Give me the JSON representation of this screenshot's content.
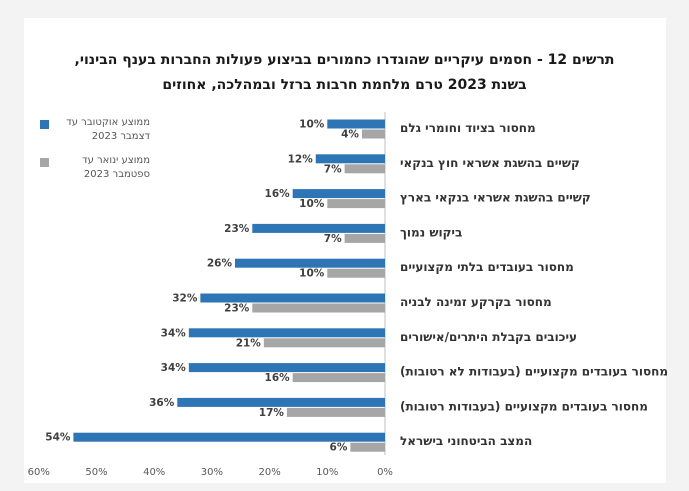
{
  "title_lines": [
    "תרשים 12 - חסמים עיקריים שהוגדרו כחמורים בביצוע פעולות החברות בענף הבינוי,",
    "בשנת 2023 טרם מלחמת חרבות ברזל ובמהלכה, אחוזים"
  ],
  "legend": [
    {
      "text": "ממוצע אוקטובר עד דצמבר 2023",
      "color": "#2e75b6"
    },
    {
      "text": "ממוצע ינואר עד ספטמבר 2023",
      "color": "#a6a6a6"
    }
  ],
  "chart_data": {
    "type": "bar",
    "orientation": "horizontal",
    "title": "תרשים 12 - חסמים עיקריים שהוגדרו כחמורים בביצוע פעולות החברות בענף הבינוי, בשנת 2023 טרם מלחמת חרבות ברזל ובמהלכה, אחוזים",
    "categories": [
      "מחסור בציוד וחומרי גלם",
      "קשיים בהשגת אשראי חוץ בנקאי",
      "קשיים בהשגת אשראי בנקאי בארץ",
      "ביקוש נמוך",
      "מחסור בעובדים בלתי מקצועיים",
      "מחסור בקרקע זמינה לבניה",
      "עיכובים בקבלת היתרים/אישורים",
      "מחסור בעובדים מקצועיים (בעבודות לא רטובות)",
      "מחסור בעובדים מקצועיים (בעבודות רטובות)",
      "המצב הביטחוני בישראל"
    ],
    "series": [
      {
        "name": "ממוצע אוקטובר עד דצמבר 2023",
        "color": "#2e75b6",
        "values": [
          10,
          12,
          16,
          23,
          26,
          32,
          34,
          34,
          36,
          54
        ]
      },
      {
        "name": "ממוצע ינואר עד ספטמבר 2023",
        "color": "#a6a6a6",
        "values": [
          4,
          7,
          10,
          7,
          10,
          23,
          21,
          16,
          17,
          6
        ]
      }
    ],
    "value_format": "{v}%",
    "xlim": [
      0,
      60
    ],
    "x_ticks": [
      0,
      10,
      20,
      30,
      40,
      50,
      60
    ],
    "x_tick_format": "{v}%",
    "axis_direction": "right-to-left",
    "grid": false,
    "legend_position": "left"
  }
}
